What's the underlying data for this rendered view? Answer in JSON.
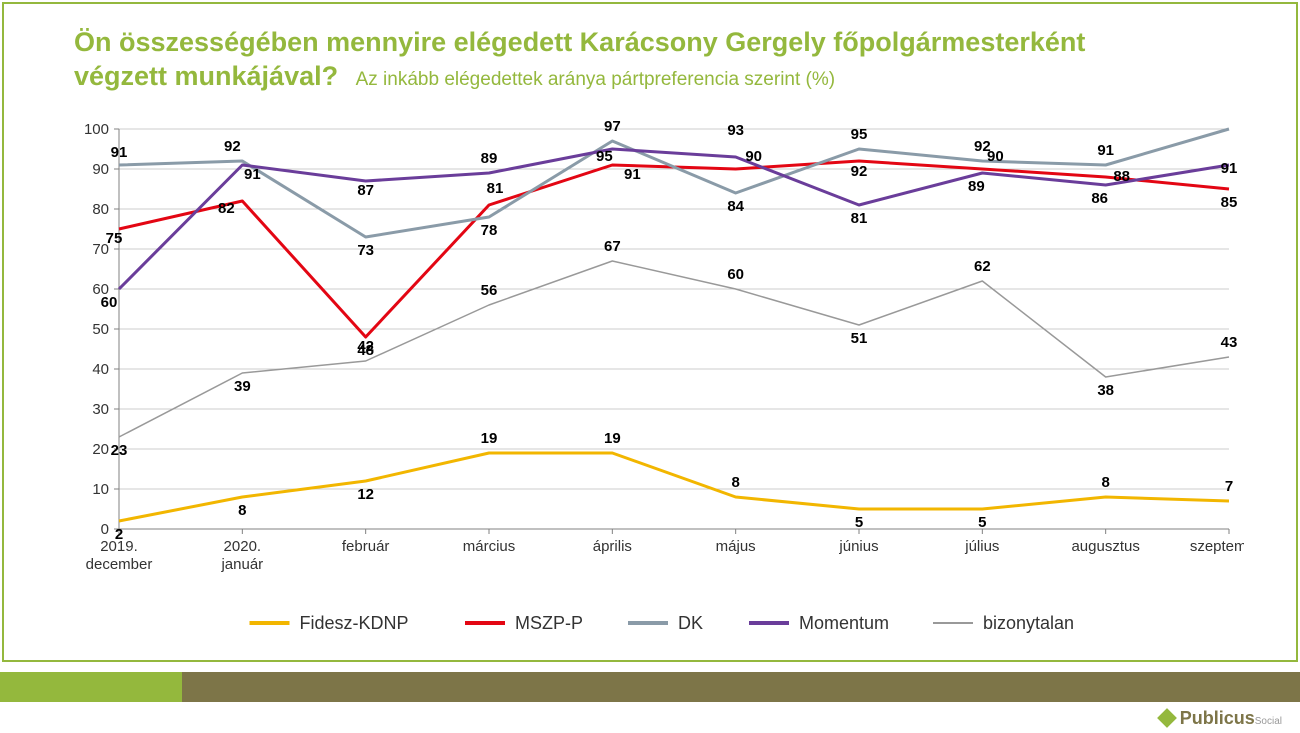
{
  "title": {
    "line1": "Ön összességében mennyire elégedett Karácsony Gergely főpolgármesterként",
    "line2": "végzett munkájával?",
    "subtitle": "Az inkább elégedettek aránya pártpreferencia szerint (%)",
    "color": "#94b83d",
    "main_fontsize": 27,
    "sub_fontsize": 19
  },
  "chart": {
    "type": "line",
    "background_color": "#ffffff",
    "grid_color": "#cccccc",
    "axis_color": "#808080",
    "ylim": [
      0,
      100
    ],
    "ytick_step": 10,
    "categories": [
      "2019. december",
      "2020. január",
      "február",
      "március",
      "április",
      "május",
      "június",
      "július",
      "augusztus",
      "szeptember"
    ],
    "tick_fontsize": 15,
    "label_fontsize": 15,
    "data_label_fontsize": 15,
    "line_width": 3,
    "thin_line_width": 1.5,
    "series": [
      {
        "name": "Fidesz-KDNP",
        "color": "#f2b600",
        "width": 3,
        "values": [
          2,
          8,
          12,
          19,
          19,
          8,
          5,
          5,
          8,
          7
        ]
      },
      {
        "name": "MSZP-P",
        "color": "#e30613",
        "width": 3,
        "values": [
          75,
          82,
          48,
          81,
          91,
          90,
          92,
          90,
          88,
          85
        ]
      },
      {
        "name": "DK",
        "color": "#8a9ba8",
        "width": 3,
        "values": [
          91,
          92,
          73,
          78,
          97,
          84,
          95,
          92,
          91,
          100
        ]
      },
      {
        "name": "Momentum",
        "color": "#6a3d9a",
        "width": 3,
        "values": [
          60,
          91,
          87,
          89,
          95,
          93,
          81,
          89,
          86,
          91
        ]
      },
      {
        "name": "bizonytalan",
        "color": "#999999",
        "width": 1.5,
        "values": [
          23,
          39,
          42,
          56,
          67,
          60,
          51,
          62,
          38,
          43
        ]
      }
    ],
    "label_offsets": {
      "Fidesz-KDNP": [
        [
          0,
          18
        ],
        [
          0,
          18
        ],
        [
          0,
          18
        ],
        [
          0,
          -10
        ],
        [
          0,
          -10
        ],
        [
          0,
          -10
        ],
        [
          0,
          18
        ],
        [
          0,
          18
        ],
        [
          0,
          -10
        ],
        [
          0,
          -10
        ]
      ],
      "MSZP-P": [
        [
          -5,
          14
        ],
        [
          -16,
          12
        ],
        [
          0,
          18
        ],
        [
          6,
          -12
        ],
        [
          20,
          14
        ],
        [
          18,
          -8
        ],
        [
          0,
          15
        ],
        [
          13,
          -8
        ],
        [
          16,
          4
        ],
        [
          0,
          18
        ]
      ],
      "DK": [
        [
          0,
          -8
        ],
        [
          -10,
          -10
        ],
        [
          0,
          18
        ],
        [
          0,
          18
        ],
        [
          0,
          -10
        ],
        [
          0,
          18
        ],
        [
          0,
          -10
        ],
        [
          0,
          -10
        ],
        [
          0,
          -10
        ],
        [
          0,
          -10
        ]
      ],
      "Momentum": [
        [
          -10,
          18
        ],
        [
          10,
          14
        ],
        [
          0,
          14
        ],
        [
          0,
          -10
        ],
        [
          -8,
          12
        ],
        [
          0,
          -22
        ],
        [
          0,
          18
        ],
        [
          -6,
          18
        ],
        [
          -6,
          18
        ],
        [
          0,
          8
        ]
      ],
      "bizonytalan": [
        [
          0,
          18
        ],
        [
          0,
          18
        ],
        [
          0,
          -10
        ],
        [
          0,
          -10
        ],
        [
          0,
          -10
        ],
        [
          0,
          -10
        ],
        [
          0,
          18
        ],
        [
          0,
          -10
        ],
        [
          0,
          18
        ],
        [
          0,
          -10
        ]
      ]
    }
  },
  "legend": {
    "fontsize": 18,
    "marker_length": 40,
    "items": [
      "Fidesz-KDNP",
      "MSZP-P",
      "DK",
      "Momentum",
      "bizonytalan"
    ]
  },
  "footer": {
    "seg1_color": "#94b83d",
    "seg2_color": "#7d7548"
  },
  "logo": {
    "text": "Publicus",
    "sub": "Social"
  }
}
